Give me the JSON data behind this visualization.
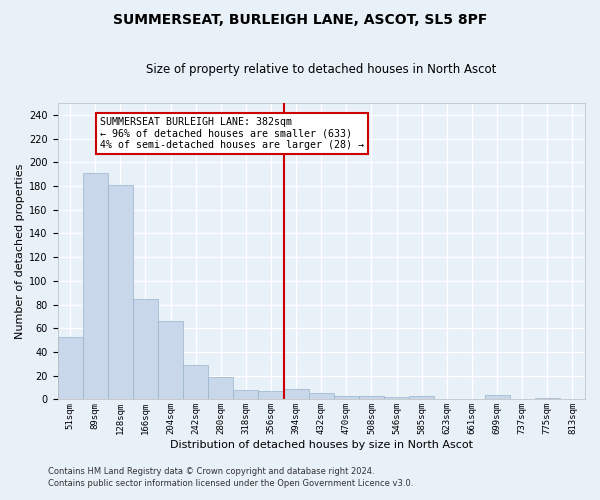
{
  "title": "SUMMERSEAT, BURLEIGH LANE, ASCOT, SL5 8PF",
  "subtitle": "Size of property relative to detached houses in North Ascot",
  "xlabel": "Distribution of detached houses by size in North Ascot",
  "ylabel": "Number of detached properties",
  "footer_line1": "Contains HM Land Registry data © Crown copyright and database right 2024.",
  "footer_line2": "Contains public sector information licensed under the Open Government Licence v3.0.",
  "bar_labels": [
    "51sqm",
    "89sqm",
    "128sqm",
    "166sqm",
    "204sqm",
    "242sqm",
    "280sqm",
    "318sqm",
    "356sqm",
    "394sqm",
    "432sqm",
    "470sqm",
    "508sqm",
    "546sqm",
    "585sqm",
    "623sqm",
    "661sqm",
    "699sqm",
    "737sqm",
    "775sqm",
    "813sqm"
  ],
  "bar_values": [
    53,
    191,
    181,
    85,
    66,
    29,
    19,
    8,
    7,
    9,
    5,
    3,
    3,
    2,
    3,
    0,
    0,
    4,
    0,
    1,
    0
  ],
  "bar_color": "#c8d8ea",
  "bar_edge_color": "#9ab4cc",
  "background_color": "#e8f0f8",
  "grid_color": "#ffffff",
  "vline_color": "#cc0000",
  "annotation_box_color": "#cc0000",
  "annotation_box_fill": "#ffffff",
  "ylim": [
    0,
    250
  ],
  "yticks": [
    0,
    20,
    40,
    60,
    80,
    100,
    120,
    140,
    160,
    180,
    200,
    220,
    240
  ]
}
